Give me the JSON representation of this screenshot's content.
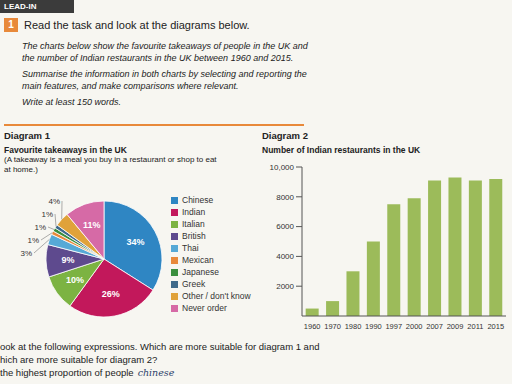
{
  "header": {
    "section": "LEAD-IN",
    "number": "1",
    "instruction": "Read the task and look at the diagrams below."
  },
  "task": {
    "lines": [
      "The charts below show the favourite takeaways of people in the UK and the number of Indian restaurants in the UK between 1960 and 2015.",
      "Summarise the information in both charts by selecting and reporting the main features, and make comparisons where relevant.",
      "Write at least 150 words."
    ]
  },
  "chart_data": [
    {
      "type": "pie",
      "label": "Diagram 1",
      "title": "Favourite takeaways in the UK",
      "subtitle": "(A takeaway is a meal you buy in a restaurant or shop to eat at home.)",
      "categories": [
        "Chinese",
        "Indian",
        "Italian",
        "British",
        "Thai",
        "Mexican",
        "Japanese",
        "Greek",
        "Other / don't know",
        "Never order"
      ],
      "values": [
        34,
        26,
        10,
        9,
        3,
        1,
        1,
        1,
        4,
        11
      ],
      "colors": [
        "#2f86c3",
        "#c2185b",
        "#7cb342",
        "#5e4a8e",
        "#56a9d6",
        "#e8893a",
        "#3a8f3e",
        "#3f6a8a",
        "#e0a23a",
        "#d66aa6"
      ],
      "data_labels": true,
      "value_labels": [
        "34%",
        "26%",
        "10%",
        "9%",
        "3%",
        "1%",
        "1%",
        "1%",
        "4%",
        "11%"
      ],
      "legend": "right"
    },
    {
      "type": "bar",
      "label": "Diagram 2",
      "title": "Number of Indian restaurants in the UK",
      "categories": [
        "1960",
        "1970",
        "1980",
        "1990",
        "1997",
        "2000",
        "2007",
        "2009",
        "2011",
        "2015"
      ],
      "values": [
        500,
        1000,
        3000,
        5000,
        7500,
        7900,
        9100,
        9300,
        9100,
        9200
      ],
      "color": "#9cbb5a",
      "ylim": [
        0,
        10000
      ],
      "yticks": [
        2000,
        4000,
        6000,
        8000,
        {
          "value": 10000,
          "label": "10,000"
        }
      ],
      "grid": false
    }
  ],
  "footer": {
    "lines": [
      "ook at the following expressions. Which are more suitable for diagram 1 and",
      "hich are more suitable for diagram 2?",
      "the highest proportion of people"
    ],
    "annotation": "chinese"
  }
}
